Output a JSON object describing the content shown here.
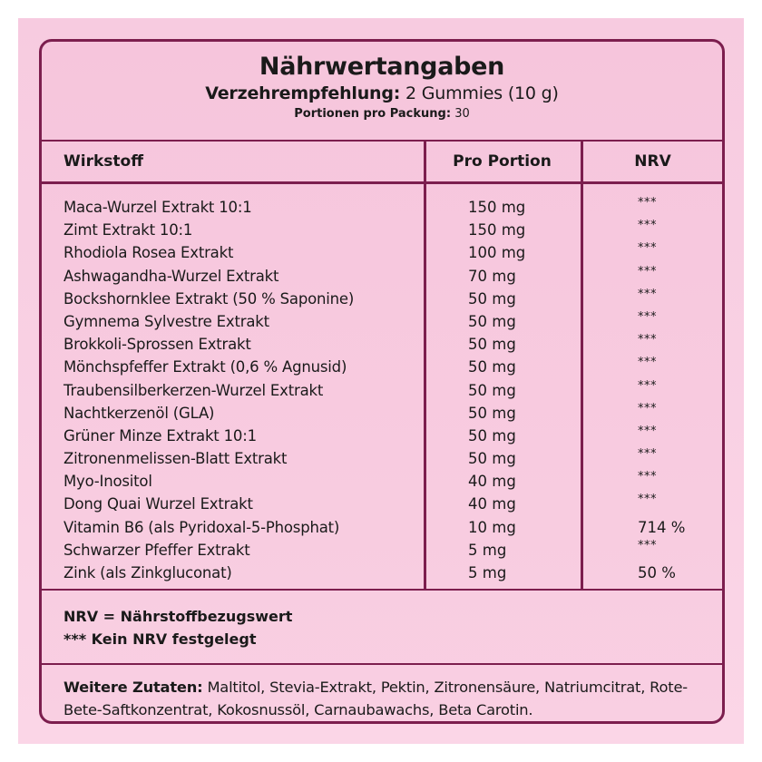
{
  "header": {
    "title": "Nährwertangaben",
    "serving_label": "Verzehrempfehlung:",
    "serving_value": "2 Gummies (10 g)",
    "servings_label": "Portionen pro Packung:",
    "servings_value": "30"
  },
  "table": {
    "columns": [
      "Wirkstoff",
      "Pro Portion",
      "NRV"
    ],
    "rows": [
      {
        "name": "Maca-Wurzel Extrakt 10:1",
        "amount": "150 mg",
        "nrv": "***"
      },
      {
        "name": "Zimt Extrakt 10:1",
        "amount": "150 mg",
        "nrv": "***"
      },
      {
        "name": "Rhodiola Rosea Extrakt",
        "amount": "100 mg",
        "nrv": "***"
      },
      {
        "name": "Ashwagandha-Wurzel Extrakt",
        "amount": "70 mg",
        "nrv": "***"
      },
      {
        "name": "Bockshornklee Extrakt (50 % Saponine)",
        "amount": "50 mg",
        "nrv": "***"
      },
      {
        "name": "Gymnema Sylvestre Extrakt",
        "amount": "50 mg",
        "nrv": "***"
      },
      {
        "name": "Brokkoli-Sprossen Extrakt",
        "amount": "50 mg",
        "nrv": "***"
      },
      {
        "name": "Mönchspfeffer Extrakt (0,6 % Agnusid)",
        "amount": "50 mg",
        "nrv": "***"
      },
      {
        "name": "Traubensilberkerzen-Wurzel Extrakt",
        "amount": "50 mg",
        "nrv": "***"
      },
      {
        "name": "Nachtkerzenöl (GLA)",
        "amount": "50 mg",
        "nrv": "***"
      },
      {
        "name": "Grüner Minze Extrakt 10:1",
        "amount": "50 mg",
        "nrv": "***"
      },
      {
        "name": "Zitronenmelissen-Blatt Extrakt",
        "amount": "50 mg",
        "nrv": "***"
      },
      {
        "name": "Myo-Inositol",
        "amount": "40 mg",
        "nrv": "***"
      },
      {
        "name": "Dong Quai Wurzel Extrakt",
        "amount": "40 mg",
        "nrv": "***"
      },
      {
        "name": "Vitamin B6 (als Pyridoxal-5-Phosphat)",
        "amount": "10 mg",
        "nrv": "714 %"
      },
      {
        "name": "Schwarzer Pfeffer Extrakt",
        "amount": "5 mg",
        "nrv": "***"
      },
      {
        "name": "Zink (als Zinkgluconat)",
        "amount": "5 mg",
        "nrv": "50 %"
      }
    ]
  },
  "legend": {
    "line1": "NRV = Nährstoffbezugswert",
    "line2": "*** Kein NRV festgelegt"
  },
  "ingredients": {
    "label": "Weitere Zutaten:",
    "text": "Maltitol, Stevia-Extrakt, Pektin, Zitronensäure, Natriumcitrat, Rote-Bete-Saftkonzentrat, Kokosnussöl, Carnaubawachs, Beta Carotin."
  },
  "colors": {
    "border": "#7c1e4e",
    "background": "#f8cbe0"
  }
}
